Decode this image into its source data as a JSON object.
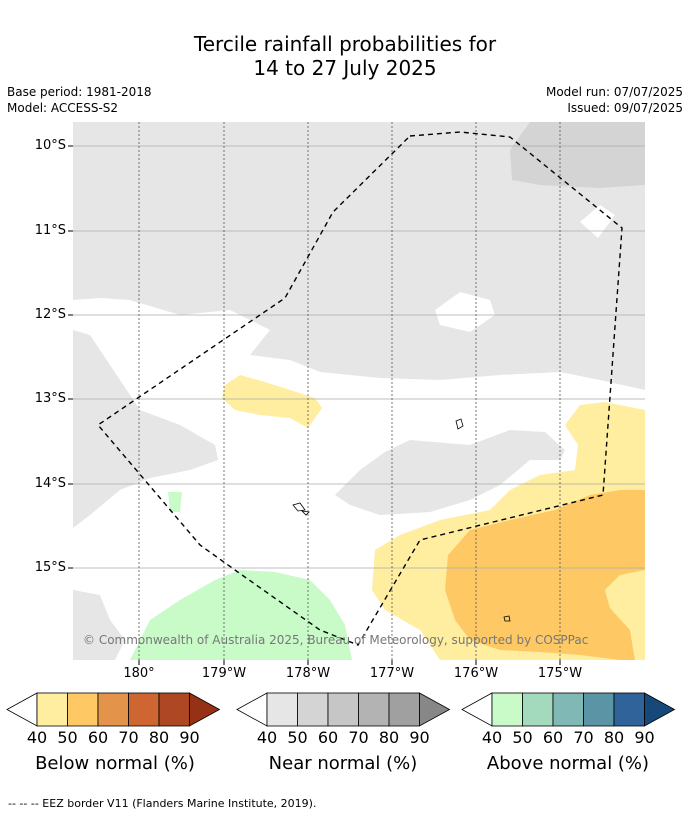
{
  "title_line1": "Tercile rainfall probabilities for",
  "title_line2": "14 to 27 July 2025",
  "base_period": "Base period: 1981-2018",
  "model": "Model: ACCESS-S2",
  "model_run": "Model run: 07/07/2025",
  "issued": "Issued: 09/07/2025",
  "credit": "© Commonwealth of Australia 2025, Bureau of Meteorology, supported by COSPPac",
  "lat_ticks": [
    "10°S",
    "11°S",
    "12°S",
    "13°S",
    "14°S",
    "15°S"
  ],
  "lon_ticks": [
    "180°",
    "179°W",
    "178°W",
    "177°W",
    "176°W",
    "175°W"
  ],
  "colorbars": [
    {
      "label": "Below normal (%)",
      "colors": [
        "#ffeda0",
        "#fec965",
        "#e3944a",
        "#cd6631",
        "#ae4723",
        "#973115"
      ]
    },
    {
      "label": "Near normal (%)",
      "colors": [
        "#e6e6e6",
        "#d4d4d4",
        "#c6c6c6",
        "#b3b3b3",
        "#a0a0a0",
        "#878787"
      ]
    },
    {
      "label": "Above normal (%)",
      "colors": [
        "#c8fbc8",
        "#a3d9bd",
        "#7fb8b4",
        "#5b94a5",
        "#2f6399",
        "#164879"
      ]
    }
  ],
  "cbar_ticks": [
    "40",
    "50",
    "60",
    "70",
    "80",
    "90"
  ],
  "footer": "--  --  -- EEZ border V11 (Flanders Marine Institute, 2019)."
}
